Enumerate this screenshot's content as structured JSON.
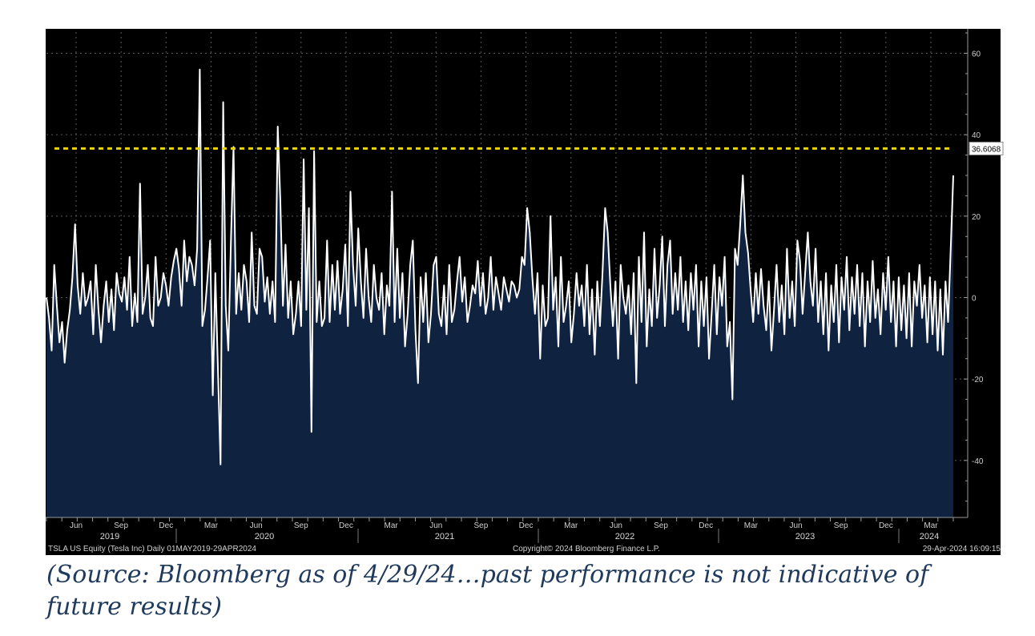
{
  "chart_data": {
    "type": "line",
    "title": "",
    "xlabel": "",
    "ylabel": "",
    "ylim": [
      -54,
      66
    ],
    "y_ticks": [
      60,
      40,
      20,
      0,
      -20,
      -40
    ],
    "x_month_ticks": [
      "Jun",
      "Sep",
      "Dec",
      "Mar",
      "Jun",
      "Sep",
      "Dec",
      "Mar",
      "Jun",
      "Sep",
      "Dec",
      "Mar",
      "Jun",
      "Sep",
      "Dec",
      "Mar",
      "Jun",
      "Sep",
      "Dec",
      "Mar"
    ],
    "x_year_labels": [
      "2019",
      "2020",
      "2021",
      "2022",
      "2023",
      "2024"
    ],
    "reference_line": {
      "value": 36.6068,
      "label": "36.6068",
      "color": "#f0d400",
      "style": "dashed"
    },
    "series": [
      {
        "name": "TSLA US Equity",
        "color": "#ffffff",
        "values": [
          0,
          -5,
          -13,
          8,
          -2,
          -11,
          -6,
          -16,
          -8,
          -3,
          5,
          18,
          3,
          -4,
          6,
          -2,
          0,
          4,
          -9,
          8,
          -3,
          -11,
          -2,
          4,
          -6,
          2,
          -8,
          6,
          1,
          -1,
          5,
          -3,
          10,
          -7,
          1,
          -6,
          28,
          -4,
          0,
          8,
          -5,
          -7,
          10,
          -2,
          0,
          6,
          3,
          -2,
          5,
          9,
          12,
          7,
          -2,
          14,
          4,
          10,
          8,
          3,
          12,
          56,
          -7,
          -3,
          5,
          14,
          -24,
          6,
          -18,
          -41,
          48,
          -2,
          -13,
          14,
          37,
          -4,
          6,
          -3,
          8,
          4,
          -6,
          16,
          -2,
          -4,
          12,
          10,
          -1,
          5,
          -4,
          4,
          -6,
          42,
          24,
          -2,
          13,
          -5,
          4,
          -9,
          -4,
          4,
          -7,
          34,
          -3,
          22,
          -33,
          36,
          -6,
          4,
          -7,
          -5,
          14,
          -6,
          8,
          -3,
          9,
          -4,
          2,
          13,
          -7,
          26,
          8,
          -2,
          17,
          4,
          -5,
          12,
          0,
          -6,
          8,
          0,
          -3,
          6,
          -9,
          3,
          -2,
          26,
          -6,
          12,
          -5,
          6,
          -12,
          -4,
          8,
          14,
          -8,
          -21,
          5,
          -6,
          6,
          -11,
          -4,
          8,
          10,
          -4,
          -7,
          3,
          -9,
          8,
          -6,
          -3,
          4,
          10,
          -1,
          5,
          -6,
          -2,
          3,
          1,
          9,
          -2,
          6,
          -4,
          0,
          10,
          -3,
          5,
          1,
          -3,
          5,
          2,
          -1,
          4,
          3,
          0,
          2,
          10,
          8,
          22,
          16,
          5,
          -4,
          6,
          -15,
          3,
          -7,
          -5,
          20,
          -3,
          5,
          -12,
          10,
          -6,
          -2,
          4,
          -11,
          -4,
          6,
          -2,
          3,
          -7,
          8,
          -9,
          2,
          -14,
          4,
          -7,
          6,
          22,
          16,
          3,
          -7,
          4,
          -15,
          8,
          0,
          -4,
          3,
          -9,
          6,
          -21,
          10,
          -6,
          16,
          -12,
          2,
          -7,
          12,
          -5,
          3,
          15,
          -7,
          8,
          14,
          -4,
          6,
          -3,
          10,
          -6,
          4,
          -8,
          6,
          -3,
          8,
          -12,
          4,
          -7,
          5,
          -15,
          -4,
          8,
          -9,
          5,
          -2,
          10,
          -12,
          -6,
          -25,
          12,
          8,
          18,
          30,
          16,
          11,
          2,
          -6,
          6,
          -4,
          7,
          -2,
          -8,
          4,
          -13,
          -3,
          8,
          -6,
          3,
          -9,
          12,
          -5,
          4,
          -7,
          14,
          9,
          -4,
          6,
          16,
          4,
          -2,
          12,
          -6,
          4,
          -9,
          6,
          -13,
          3,
          -6,
          8,
          -11,
          5,
          -3,
          10,
          -8,
          5,
          -4,
          8,
          -7,
          6,
          -12,
          4,
          -6,
          9,
          -5,
          2,
          -9,
          6,
          -3,
          10,
          -6,
          4,
          -12,
          5,
          -8,
          3,
          -10,
          6,
          -12,
          4,
          -2,
          8,
          -5,
          3,
          -11,
          5,
          -9,
          4,
          -13,
          2,
          -14,
          4,
          -6,
          12,
          30
        ]
      }
    ]
  },
  "chart_footer": {
    "left_label": "TSLA US Equity (Tesla Inc)   Daily 01MAY2019-29APR2024",
    "center_label": "Copyright© 2024 Bloomberg Finance L.P.",
    "right_label": "29-Apr-2024 16:09:15"
  },
  "caption": "(Source: Bloomberg as of 4/29/24…past performance is not indicative of future results)"
}
